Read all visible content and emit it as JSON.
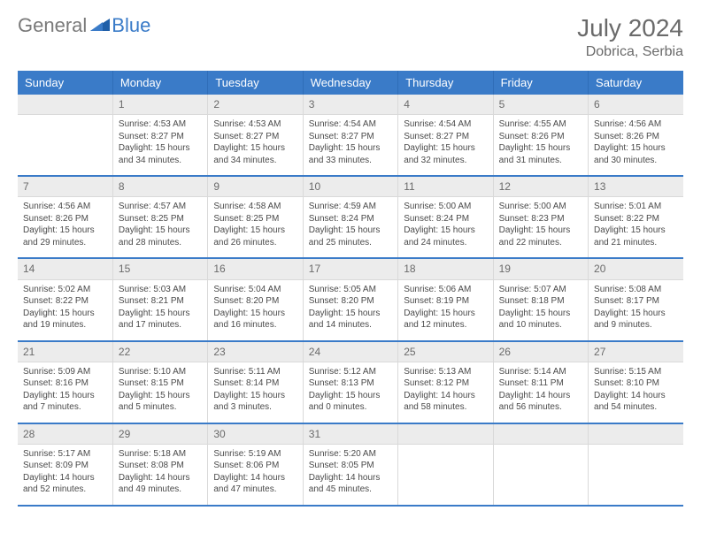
{
  "brand": {
    "general": "General",
    "blue": "Blue"
  },
  "title": {
    "month": "July 2024",
    "location": "Dobrica, Serbia"
  },
  "colors": {
    "header_bg": "#3a7bc8",
    "header_text": "#ffffff",
    "daynum_bg": "#ececec",
    "text": "#4a4a4a",
    "rule": "#3a7bc8"
  },
  "dayHeaders": [
    "Sunday",
    "Monday",
    "Tuesday",
    "Wednesday",
    "Thursday",
    "Friday",
    "Saturday"
  ],
  "weeks": [
    {
      "nums": [
        "",
        "1",
        "2",
        "3",
        "4",
        "5",
        "6"
      ],
      "cells": [
        null,
        {
          "sunrise": "4:53 AM",
          "sunset": "8:27 PM",
          "dayh": "15",
          "daym": "34"
        },
        {
          "sunrise": "4:53 AM",
          "sunset": "8:27 PM",
          "dayh": "15",
          "daym": "34"
        },
        {
          "sunrise": "4:54 AM",
          "sunset": "8:27 PM",
          "dayh": "15",
          "daym": "33"
        },
        {
          "sunrise": "4:54 AM",
          "sunset": "8:27 PM",
          "dayh": "15",
          "daym": "32"
        },
        {
          "sunrise": "4:55 AM",
          "sunset": "8:26 PM",
          "dayh": "15",
          "daym": "31"
        },
        {
          "sunrise": "4:56 AM",
          "sunset": "8:26 PM",
          "dayh": "15",
          "daym": "30"
        }
      ]
    },
    {
      "nums": [
        "7",
        "8",
        "9",
        "10",
        "11",
        "12",
        "13"
      ],
      "cells": [
        {
          "sunrise": "4:56 AM",
          "sunset": "8:26 PM",
          "dayh": "15",
          "daym": "29"
        },
        {
          "sunrise": "4:57 AM",
          "sunset": "8:25 PM",
          "dayh": "15",
          "daym": "28"
        },
        {
          "sunrise": "4:58 AM",
          "sunset": "8:25 PM",
          "dayh": "15",
          "daym": "26"
        },
        {
          "sunrise": "4:59 AM",
          "sunset": "8:24 PM",
          "dayh": "15",
          "daym": "25"
        },
        {
          "sunrise": "5:00 AM",
          "sunset": "8:24 PM",
          "dayh": "15",
          "daym": "24"
        },
        {
          "sunrise": "5:00 AM",
          "sunset": "8:23 PM",
          "dayh": "15",
          "daym": "22"
        },
        {
          "sunrise": "5:01 AM",
          "sunset": "8:22 PM",
          "dayh": "15",
          "daym": "21"
        }
      ]
    },
    {
      "nums": [
        "14",
        "15",
        "16",
        "17",
        "18",
        "19",
        "20"
      ],
      "cells": [
        {
          "sunrise": "5:02 AM",
          "sunset": "8:22 PM",
          "dayh": "15",
          "daym": "19"
        },
        {
          "sunrise": "5:03 AM",
          "sunset": "8:21 PM",
          "dayh": "15",
          "daym": "17"
        },
        {
          "sunrise": "5:04 AM",
          "sunset": "8:20 PM",
          "dayh": "15",
          "daym": "16"
        },
        {
          "sunrise": "5:05 AM",
          "sunset": "8:20 PM",
          "dayh": "15",
          "daym": "14"
        },
        {
          "sunrise": "5:06 AM",
          "sunset": "8:19 PM",
          "dayh": "15",
          "daym": "12"
        },
        {
          "sunrise": "5:07 AM",
          "sunset": "8:18 PM",
          "dayh": "15",
          "daym": "10"
        },
        {
          "sunrise": "5:08 AM",
          "sunset": "8:17 PM",
          "dayh": "15",
          "daym": "9"
        }
      ]
    },
    {
      "nums": [
        "21",
        "22",
        "23",
        "24",
        "25",
        "26",
        "27"
      ],
      "cells": [
        {
          "sunrise": "5:09 AM",
          "sunset": "8:16 PM",
          "dayh": "15",
          "daym": "7"
        },
        {
          "sunrise": "5:10 AM",
          "sunset": "8:15 PM",
          "dayh": "15",
          "daym": "5"
        },
        {
          "sunrise": "5:11 AM",
          "sunset": "8:14 PM",
          "dayh": "15",
          "daym": "3"
        },
        {
          "sunrise": "5:12 AM",
          "sunset": "8:13 PM",
          "dayh": "15",
          "daym": "0"
        },
        {
          "sunrise": "5:13 AM",
          "sunset": "8:12 PM",
          "dayh": "14",
          "daym": "58"
        },
        {
          "sunrise": "5:14 AM",
          "sunset": "8:11 PM",
          "dayh": "14",
          "daym": "56"
        },
        {
          "sunrise": "5:15 AM",
          "sunset": "8:10 PM",
          "dayh": "14",
          "daym": "54"
        }
      ]
    },
    {
      "nums": [
        "28",
        "29",
        "30",
        "31",
        "",
        "",
        ""
      ],
      "cells": [
        {
          "sunrise": "5:17 AM",
          "sunset": "8:09 PM",
          "dayh": "14",
          "daym": "52"
        },
        {
          "sunrise": "5:18 AM",
          "sunset": "8:08 PM",
          "dayh": "14",
          "daym": "49"
        },
        {
          "sunrise": "5:19 AM",
          "sunset": "8:06 PM",
          "dayh": "14",
          "daym": "47"
        },
        {
          "sunrise": "5:20 AM",
          "sunset": "8:05 PM",
          "dayh": "14",
          "daym": "45"
        },
        null,
        null,
        null
      ]
    }
  ],
  "labels": {
    "sunrise": "Sunrise: ",
    "sunset": "Sunset: ",
    "daylight_pre": "Daylight: ",
    "hours_mid": " hours and ",
    "minutes_suf": " minutes."
  }
}
